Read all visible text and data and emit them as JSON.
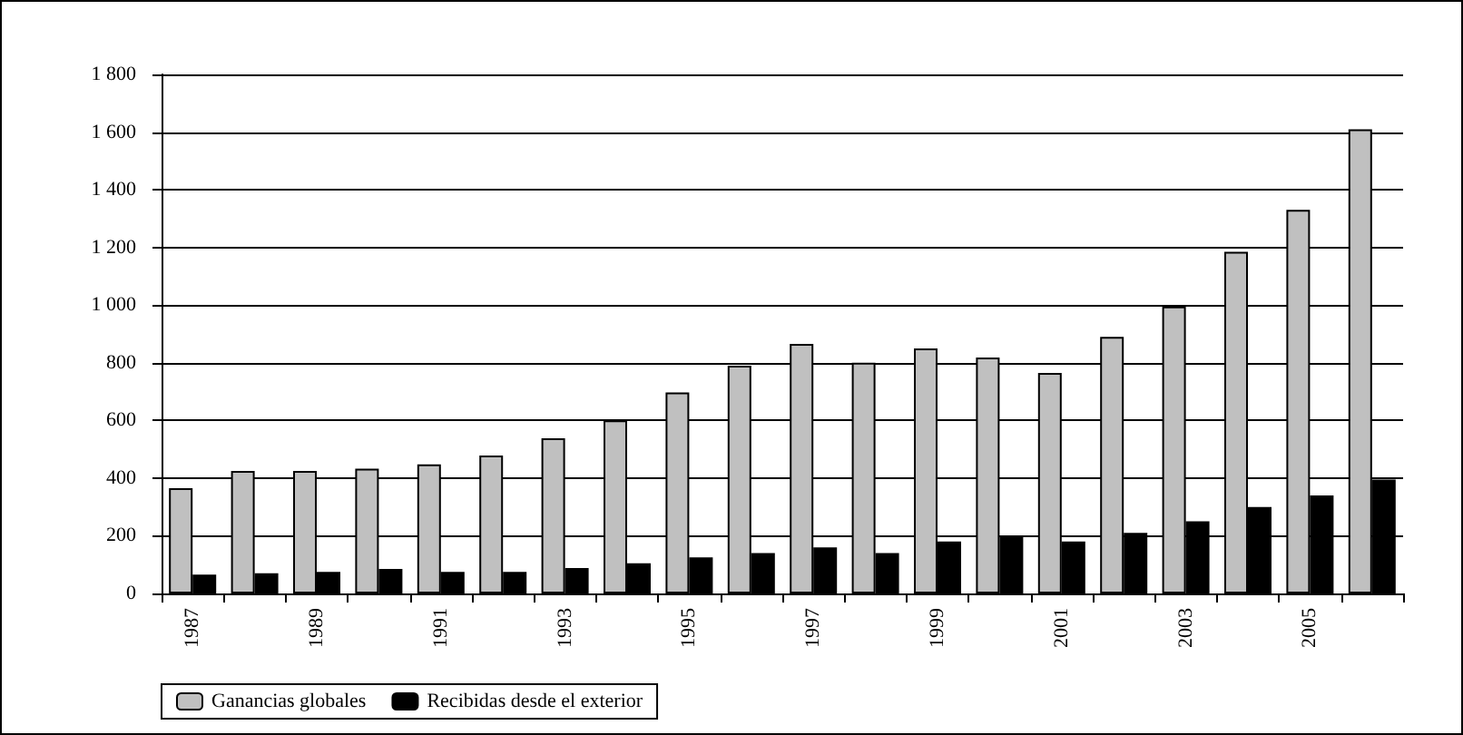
{
  "chart_data": {
    "type": "bar",
    "categories": [
      "1987",
      null,
      "1989",
      null,
      "1991",
      null,
      "1993",
      null,
      "1995",
      null,
      "1997",
      null,
      "1999",
      null,
      "2001",
      null,
      "2003",
      null,
      "2005",
      null
    ],
    "series": [
      {
        "name": "Ganancias globales",
        "color": "#c0c0c0",
        "values": [
          365,
          425,
          425,
          433,
          448,
          478,
          538,
          600,
          697,
          790,
          865,
          800,
          850,
          818,
          765,
          890,
          995,
          1185,
          1330,
          1610
        ]
      },
      {
        "name": "Recibidas desde el exterior",
        "color": "#000000",
        "values": [
          65,
          70,
          75,
          85,
          75,
          75,
          88,
          105,
          125,
          140,
          160,
          140,
          180,
          200,
          180,
          210,
          250,
          300,
          340,
          395
        ]
      }
    ],
    "ylim": [
      0,
      1800
    ],
    "yticks": [
      0,
      200,
      400,
      600,
      800,
      {
        "value": 1000,
        "label": "1 000"
      },
      {
        "value": 1200,
        "label": "1 200"
      },
      {
        "value": 1400,
        "label": "1 400"
      },
      {
        "value": 1600,
        "label": "1 600"
      },
      {
        "value": 1800,
        "label": "1 800"
      }
    ],
    "grid": "y",
    "legend": "bottom"
  }
}
